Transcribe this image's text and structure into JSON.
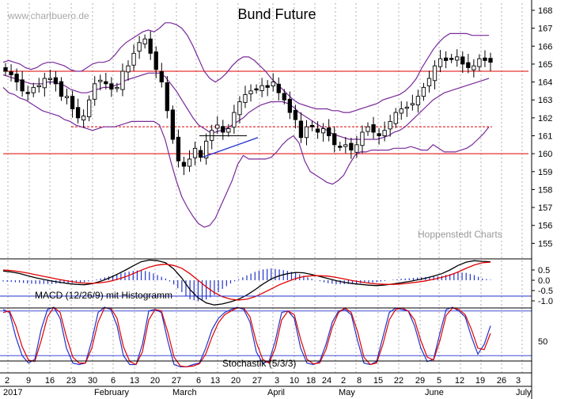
{
  "header": {
    "title": "Bund Future",
    "watermark": "www.chartbuero.de",
    "source": "Hoppenstedt Charts"
  },
  "colors": {
    "band": "#7a2a9a",
    "hline": "#e00000",
    "candle": "#000000",
    "macd_signal": "#e00000",
    "macd_hist": "#2233cc",
    "stoch_k": "#2233cc",
    "stoch_d": "#e00000",
    "vgrid": "#b0b0b0"
  },
  "chart_data": [
    {
      "type": "candlestick",
      "title": "Bund Future",
      "ylim": [
        154.2,
        168.7
      ],
      "y_ticks": [
        155,
        156,
        157,
        158,
        159,
        160,
        161,
        162,
        163,
        164,
        165,
        166,
        167,
        168
      ],
      "x_ticks": [
        "2",
        "9",
        "16",
        "23",
        "30",
        "6",
        "13",
        "20",
        "27",
        "6",
        "13",
        "20",
        "27",
        "3",
        "10",
        "18",
        "24",
        "2",
        "8",
        "15",
        "22",
        "29",
        "5",
        "12",
        "19",
        "26",
        "3"
      ],
      "months": [
        "2017",
        "February",
        "March",
        "April",
        "May",
        "June",
        "July"
      ],
      "horizontal_lines": [
        {
          "style": "solid",
          "y": 164.6
        },
        {
          "style": "dashed",
          "y": 161.5
        },
        {
          "style": "solid",
          "y": 160.0
        }
      ],
      "trendline": {
        "from": [
          159.8,
          "Mar 13"
        ],
        "to": [
          160.9,
          "Mar 31"
        ]
      },
      "triangle_top": 161.0,
      "closes": [
        164.6,
        164.4,
        164.0,
        163.5,
        163.4,
        163.7,
        163.8,
        164.2,
        164.2,
        163.9,
        163.2,
        163.2,
        162.5,
        162.0,
        162.1,
        163.0,
        163.9,
        164.1,
        163.9,
        163.6,
        163.7,
        164.6,
        164.9,
        165.6,
        166.2,
        166.4,
        165.6,
        164.7,
        164.0,
        162.4,
        160.8,
        159.6,
        159.3,
        159.7,
        160.3,
        159.8,
        160.7,
        161.3,
        161.6,
        161.2,
        161.4,
        162.3,
        162.9,
        163.3,
        163.5,
        163.6,
        163.8,
        163.7,
        164.0,
        163.4,
        163.0,
        162.3,
        161.9,
        160.9,
        161.5,
        161.5,
        161.2,
        161.4,
        161.0,
        160.5,
        160.4,
        160.5,
        160.2,
        160.5,
        161.2,
        161.5,
        161.2,
        161.0,
        161.3,
        161.8,
        162.3,
        162.5,
        162.6,
        162.8,
        163.2,
        163.7,
        164.2,
        164.9,
        165.3,
        165.2,
        165.3,
        165.4,
        165.0,
        164.8,
        164.9,
        165.3,
        165.2,
        165.1
      ],
      "bollinger": {
        "upper": [
          165.1,
          165.2,
          165.1,
          165.0,
          164.8,
          164.7,
          164.8,
          165.0,
          165.1,
          165.1,
          165.0,
          164.9,
          164.7,
          164.6,
          164.6,
          164.8,
          165.0,
          165.1,
          165.1,
          165.2,
          165.5,
          165.9,
          166.2,
          166.4,
          166.6,
          166.8,
          166.9,
          166.8,
          167.0,
          167.3,
          167.3,
          167.2,
          167.0,
          166.6,
          166.0,
          165.3,
          164.6,
          164.2,
          164.0,
          164.2,
          164.5,
          164.9,
          165.2,
          165.4,
          165.4,
          165.2,
          164.9,
          164.6,
          164.2,
          163.9,
          163.6,
          163.3,
          163.0,
          162.8,
          162.7,
          162.6,
          162.5,
          162.5,
          162.5,
          162.4,
          162.4,
          162.3,
          162.3,
          162.4,
          162.5,
          162.6,
          162.7,
          162.8,
          163.0,
          163.1,
          163.2,
          163.3,
          163.5,
          163.8,
          164.2,
          164.8,
          165.3,
          165.8,
          166.2,
          166.5,
          166.7,
          166.7,
          166.7,
          166.7,
          166.6,
          166.6,
          166.6,
          166.6
        ],
        "middle": [
          164.4,
          164.3,
          164.2,
          164.1,
          164.0,
          163.9,
          163.9,
          163.9,
          164.0,
          164.0,
          163.9,
          163.8,
          163.6,
          163.5,
          163.4,
          163.4,
          163.5,
          163.6,
          163.7,
          163.7,
          163.8,
          163.9,
          164.1,
          164.2,
          164.3,
          164.4,
          164.5,
          164.5,
          164.5,
          164.3,
          163.9,
          163.5,
          163.0,
          162.5,
          162.0,
          161.6,
          161.4,
          161.2,
          161.2,
          161.3,
          161.4,
          161.6,
          161.8,
          162.0,
          162.3,
          162.5,
          162.7,
          162.8,
          162.9,
          162.9,
          162.9,
          162.8,
          162.6,
          162.3,
          162.1,
          161.9,
          161.7,
          161.5,
          161.3,
          161.1,
          161.0,
          160.9,
          160.8,
          160.8,
          160.8,
          160.8,
          160.8,
          160.8,
          160.9,
          161.0,
          161.2,
          161.3,
          161.5,
          161.8,
          162.1,
          162.4,
          162.7,
          163.0,
          163.2,
          163.4,
          163.5,
          163.6,
          163.7,
          163.8,
          163.9,
          164.0,
          164.1,
          164.2
        ],
        "lower": [
          163.7,
          163.4,
          163.3,
          163.1,
          163.0,
          162.8,
          162.6,
          162.4,
          162.3,
          162.2,
          162.1,
          161.9,
          161.8,
          161.6,
          161.5,
          161.4,
          161.3,
          161.4,
          161.5,
          161.5,
          161.5,
          161.6,
          161.7,
          161.8,
          161.8,
          161.8,
          161.8,
          161.8,
          161.6,
          160.8,
          159.6,
          158.5,
          157.6,
          157.0,
          156.5,
          156.1,
          155.9,
          156.0,
          156.4,
          157.1,
          157.8,
          158.5,
          159.4,
          159.9,
          159.7,
          159.7,
          159.7,
          159.7,
          159.8,
          160.1,
          160.5,
          160.8,
          161.0,
          160.6,
          159.6,
          159.0,
          158.8,
          158.6,
          158.4,
          158.3,
          158.5,
          158.8,
          159.4,
          159.9,
          160.1,
          160.1,
          160.2,
          160.2,
          160.2,
          160.2,
          160.3,
          160.3,
          160.3,
          160.4,
          160.3,
          160.2,
          160.2,
          160.5,
          160.3,
          160.1,
          160.1,
          160.1,
          160.2,
          160.3,
          160.5,
          160.8,
          161.1,
          161.5
        ]
      }
    },
    {
      "type": "line",
      "title": "MACD (12/26/9) mit Histogramm",
      "ylim": [
        -1.4,
        1.1
      ],
      "y_ticks": [
        "0.5",
        "0.0",
        "-0.5",
        "-1.0"
      ],
      "y_tick_values": [
        0.5,
        0.0,
        -0.5,
        -1.0
      ],
      "series": [
        {
          "name": "",
          "values": [
            0.45,
            0.4,
            0.33,
            0.22,
            0.12,
            0.04,
            -0.04,
            -0.1,
            -0.16,
            -0.2,
            -0.22,
            -0.16,
            -0.05,
            0.1,
            0.28,
            0.48,
            0.7,
            0.9,
            0.98,
            0.95,
            0.85,
            0.55,
            0.1,
            -0.45,
            -0.85,
            -1.1,
            -1.2,
            -1.15,
            -1.05,
            -0.92,
            -0.72,
            -0.46,
            -0.18,
            0.06,
            0.22,
            0.32,
            0.38,
            0.36,
            0.28,
            0.18,
            0.08,
            -0.02,
            -0.1,
            -0.16,
            -0.2,
            -0.24,
            -0.26,
            -0.23,
            -0.18,
            -0.12,
            -0.06,
            0.02,
            0.1,
            0.2,
            0.32,
            0.5,
            0.72,
            0.88,
            0.95,
            0.92,
            0.9
          ]
        },
        {
          "name": "",
          "values": [
            0.5,
            0.47,
            0.42,
            0.35,
            0.27,
            0.19,
            0.11,
            0.03,
            -0.04,
            -0.1,
            -0.14,
            -0.15,
            -0.12,
            -0.06,
            0.04,
            0.16,
            0.32,
            0.49,
            0.64,
            0.74,
            0.78,
            0.72,
            0.58,
            0.32,
            0.0,
            -0.32,
            -0.6,
            -0.8,
            -0.92,
            -0.96,
            -0.92,
            -0.8,
            -0.62,
            -0.42,
            -0.22,
            -0.06,
            0.08,
            0.18,
            0.22,
            0.22,
            0.2,
            0.14,
            0.06,
            -0.02,
            -0.08,
            -0.14,
            -0.18,
            -0.2,
            -0.2,
            -0.18,
            -0.14,
            -0.09,
            -0.03,
            0.05,
            0.14,
            0.25,
            0.4,
            0.58,
            0.74,
            0.85,
            0.88
          ]
        }
      ]
    },
    {
      "type": "line",
      "title": "Stochastik (5/3/3)",
      "ylim": [
        0,
        100
      ],
      "y_ticks": [
        "50"
      ],
      "y_tick_values": [
        50
      ],
      "reference_lines": [
        100,
        80,
        20
      ],
      "series": [
        {
          "name": "",
          "values": [
            82,
            78,
            45,
            20,
            10,
            15,
            55,
            82,
            85,
            70,
            30,
            10,
            8,
            10,
            40,
            78,
            85,
            82,
            60,
            20,
            8,
            8,
            35,
            80,
            82,
            78,
            40,
            8,
            5,
            5,
            8,
            10,
            30,
            55,
            70,
            78,
            82,
            85,
            82,
            65,
            25,
            10,
            12,
            40,
            78,
            80,
            70,
            30,
            10,
            8,
            12,
            35,
            65,
            80,
            82,
            75,
            40,
            10,
            8,
            12,
            45,
            78,
            84,
            82,
            80,
            60,
            30,
            12,
            15,
            50,
            82,
            85,
            80,
            72,
            45,
            22,
            35,
            60
          ]
        },
        {
          "name": "",
          "values": [
            78,
            80,
            60,
            32,
            14,
            12,
            40,
            72,
            85,
            78,
            45,
            18,
            10,
            10,
            30,
            65,
            84,
            84,
            70,
            32,
            12,
            8,
            25,
            68,
            82,
            80,
            52,
            18,
            6,
            5,
            6,
            9,
            22,
            45,
            64,
            75,
            80,
            84,
            84,
            72,
            38,
            15,
            10,
            30,
            68,
            80,
            75,
            42,
            15,
            9,
            10,
            28,
            58,
            78,
            84,
            78,
            52,
            18,
            8,
            10,
            35,
            68,
            82,
            84,
            80,
            68,
            40,
            18,
            14,
            40,
            74,
            84,
            82,
            75,
            55,
            30,
            28,
            50
          ]
        }
      ]
    }
  ],
  "macd_label": "MACD (12/26/9) mit Histogramm",
  "stoch_label": "Stochastik (5/3/3)"
}
